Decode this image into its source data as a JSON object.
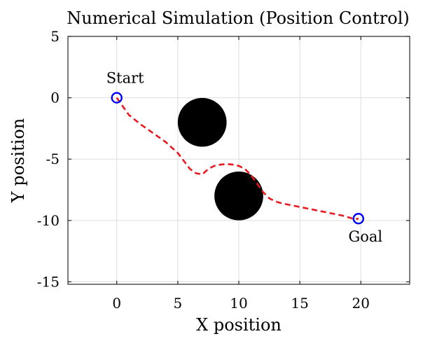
{
  "chart_data": {
    "type": "scatter",
    "title": "Numerical Simulation (Position Control)",
    "xlabel": "X position",
    "ylabel": "Y position",
    "xlim": [
      -4,
      24
    ],
    "ylim": [
      -15.2,
      5
    ],
    "xticks": [
      0,
      5,
      10,
      15,
      20
    ],
    "xtick_labels": [
      "0",
      "5",
      "10",
      "15",
      "20"
    ],
    "yticks": [
      5,
      0,
      -5,
      -10,
      -15
    ],
    "ytick_labels": [
      "5",
      "0",
      "-5",
      "-10",
      "-15"
    ],
    "grid": true,
    "path": {
      "color": "#e8191f",
      "style": "dashed",
      "x": [
        0,
        1,
        2,
        3,
        4,
        5,
        6,
        6.5,
        7,
        7.5,
        8,
        8.5,
        9,
        9.5,
        10,
        10.5,
        11,
        11.5,
        12,
        12.5,
        13,
        13.5,
        15,
        17,
        18.5,
        19.5,
        19.8
      ],
      "y": [
        0,
        -1.4,
        -2.2,
        -2.9,
        -3.6,
        -4.5,
        -5.8,
        -6.15,
        -6.25,
        -5.8,
        -5.55,
        -5.45,
        -5.4,
        -5.45,
        -5.55,
        -5.8,
        -6.3,
        -7.0,
        -7.7,
        -8.2,
        -8.45,
        -8.6,
        -8.9,
        -9.3,
        -9.6,
        -9.9,
        -9.85
      ]
    },
    "obstacles": [
      {
        "x": 7,
        "y": -2,
        "r": 2,
        "color": "#000000"
      },
      {
        "x": 10,
        "y": -8,
        "r": 2,
        "color": "#000000"
      }
    ],
    "markers": [
      {
        "label": "Start",
        "x": 0,
        "y": 0,
        "color": "#0000ff"
      },
      {
        "label": "Goal",
        "x": 19.8,
        "y": -9.85,
        "color": "#0000ff"
      }
    ]
  }
}
